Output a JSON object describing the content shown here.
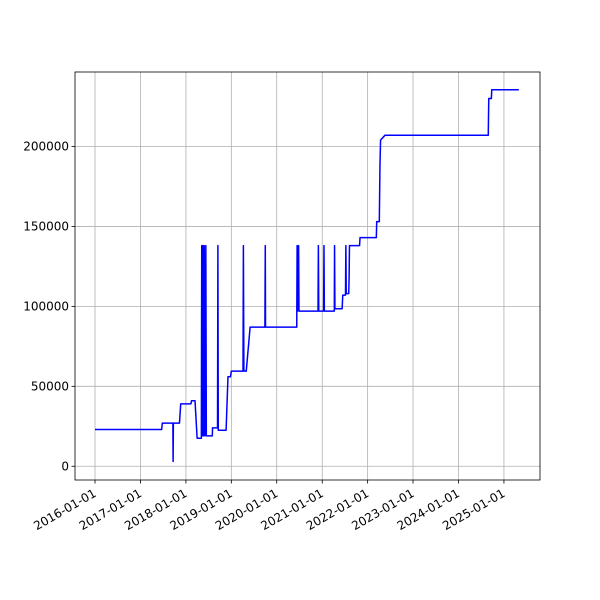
{
  "chart_data": {
    "type": "line",
    "color": "#0000ff",
    "grid": true,
    "x": [
      "2016-01-01",
      "2017-06-20",
      "2017-06-25",
      "2017-09-18",
      "2017-09-20",
      "2017-09-22",
      "2017-11-10",
      "2017-11-20",
      "2018-02-10",
      "2018-02-15",
      "2018-03-15",
      "2018-04-01",
      "2018-05-05",
      "2018-05-08",
      "2018-05-12",
      "2018-05-18",
      "2018-05-22",
      "2018-05-28",
      "2018-06-02",
      "2018-06-10",
      "2018-06-14",
      "2018-08-01",
      "2018-08-03",
      "2018-09-12",
      "2018-09-15",
      "2018-09-18",
      "2018-11-20",
      "2018-12-05",
      "2018-12-25",
      "2019-01-01",
      "2019-04-05",
      "2019-04-08",
      "2019-04-12",
      "2019-05-01",
      "2019-06-01",
      "2019-09-28",
      "2019-10-01",
      "2019-10-03",
      "2020-06-10",
      "2020-06-13",
      "2020-06-16",
      "2020-06-25",
      "2020-06-28",
      "2020-11-28",
      "2020-12-01",
      "2020-12-04",
      "2021-01-12",
      "2021-01-15",
      "2021-01-18",
      "2021-04-08",
      "2021-04-10",
      "2021-04-13",
      "2021-06-10",
      "2021-06-15",
      "2021-07-07",
      "2021-07-10",
      "2021-07-13",
      "2021-08-02",
      "2021-08-05",
      "2021-08-08",
      "2021-10-28",
      "2021-11-01",
      "2022-03-12",
      "2022-03-15",
      "2022-04-05",
      "2022-04-10",
      "2022-04-15",
      "2022-05-20",
      "2024-08-28",
      "2024-09-01",
      "2024-09-22",
      "2024-09-25",
      "2025-05-01"
    ],
    "values": [
      23000,
      23000,
      27000,
      27000,
      3000,
      27000,
      27000,
      39000,
      39000,
      41000,
      41000,
      17500,
      17500,
      138000,
      19000,
      138000,
      19000,
      138000,
      19000,
      138000,
      19000,
      19000,
      24000,
      24000,
      138000,
      22500,
      22500,
      56000,
      56000,
      59500,
      59500,
      138000,
      59500,
      59500,
      87000,
      87000,
      138000,
      87000,
      87000,
      138000,
      97000,
      138000,
      97000,
      97000,
      138000,
      97000,
      97000,
      138000,
      97000,
      97000,
      138000,
      98500,
      98500,
      107000,
      107000,
      138000,
      108000,
      108000,
      118000,
      138000,
      138000,
      143000,
      143000,
      153000,
      153000,
      187000,
      204000,
      207000,
      207000,
      230000,
      230000,
      235500,
      235500
    ],
    "xlim": [
      "2015-07-24",
      "2025-10-18"
    ],
    "xticks": [
      "2016-01-01",
      "2017-01-01",
      "2018-01-01",
      "2019-01-01",
      "2020-01-01",
      "2021-01-01",
      "2022-01-01",
      "2023-01-01",
      "2024-01-01",
      "2025-01-01"
    ],
    "ylim": [
      -8600,
      246600
    ],
    "yticks": [
      0,
      50000,
      100000,
      150000,
      200000
    ]
  }
}
